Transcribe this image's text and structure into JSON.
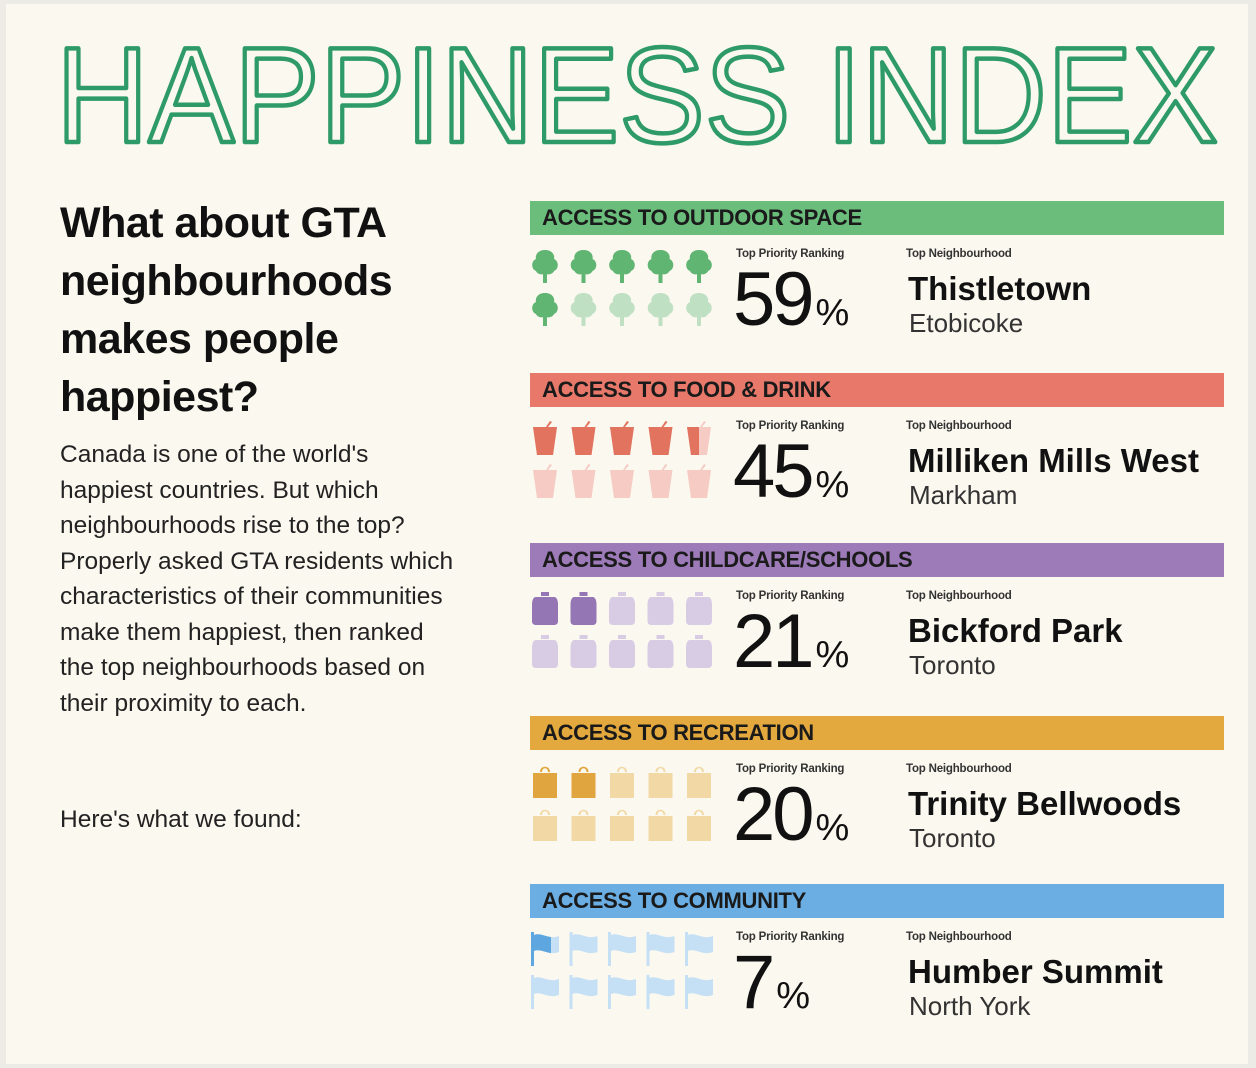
{
  "title": "HAPPINESS INDEX",
  "question": "What about GTA neighbourhoods makes people happiest?",
  "intro": "Canada is one of the world's happiest countries. But which neighbourhoods rise to the top? Properly asked GTA residents which characteristics of their communities make them happiest, then ranked the top neighbourhoods based on their proximity to each.",
  "found_text": "Here's what we found:",
  "colors": {
    "title_outline": "#2e9a68",
    "background": "#fbf8ef"
  },
  "chart_data": {
    "type": "table",
    "column_labels": {
      "rank": "Top Priority Ranking",
      "neighbourhood": "Top Neighbourhood"
    },
    "percent_sign": "%",
    "icons_total": 10,
    "categories": [
      {
        "label": "ACCESS TO OUTDOOR SPACE",
        "value": 59,
        "value_text": "59",
        "neighbourhood": "Thistletown",
        "city": "Etobicoke",
        "icon": "tree-icon",
        "band_color": "#6bbd7c",
        "icon_full_color": "#5fb571",
        "icon_light_color": "#bfe0c3",
        "icons_filled": 6
      },
      {
        "label": "ACCESS TO FOOD & DRINK",
        "value": 45,
        "value_text": "45",
        "neighbourhood": "Milliken Mills West",
        "city": "Markham",
        "icon": "drink-cup-icon",
        "band_color": "#e8796a",
        "icon_full_color": "#e2735f",
        "icon_light_color": "#f5cbc3",
        "icons_filled": 4.5
      },
      {
        "label": "ACCESS TO CHILDCARE/SCHOOLS",
        "value": 21,
        "value_text": "21",
        "neighbourhood": "Bickford Park",
        "city": "Toronto",
        "icon": "backpack-icon",
        "band_color": "#9d7ab8",
        "icon_full_color": "#9476b4",
        "icon_light_color": "#d8cce4",
        "icons_filled": 2
      },
      {
        "label": "ACCESS TO RECREATION",
        "value": 20,
        "value_text": "20",
        "neighbourhood": "Trinity Bellwoods",
        "city": "Toronto",
        "icon": "shopping-bag-icon",
        "band_color": "#e3a93e",
        "icon_full_color": "#e0a53e",
        "icon_light_color": "#f1d8a4",
        "icons_filled": 2
      },
      {
        "label": "ACCESS TO COMMUNITY",
        "value": 7,
        "value_text": "7",
        "neighbourhood": "Humber Summit",
        "city": "North York",
        "icon": "flag-icon",
        "band_color": "#6aaee4",
        "icon_full_color": "#5da6e0",
        "icon_light_color": "#c5e0f5",
        "icons_filled": 0.7
      }
    ]
  }
}
